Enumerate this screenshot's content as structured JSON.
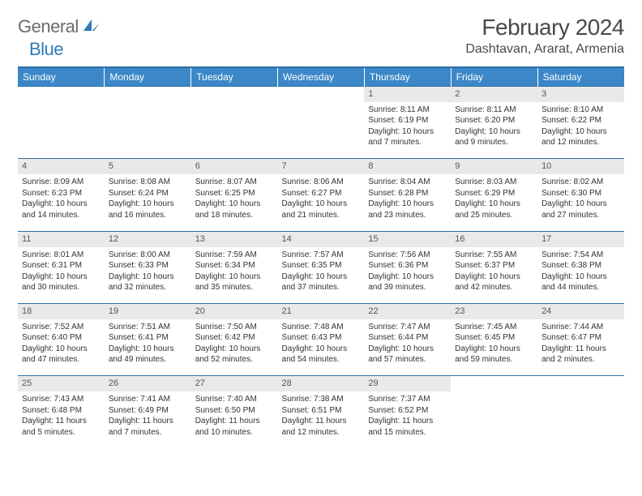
{
  "brand": {
    "part1": "General",
    "part2": "Blue"
  },
  "title": "February 2024",
  "location": "Dashtavan, Ararat, Armenia",
  "colors": {
    "header_bg": "#3b87c8",
    "header_border": "#2f6fa3",
    "daynum_bg": "#e9e9e9",
    "text": "#333333",
    "brand_gray": "#6b6b6b",
    "brand_blue": "#2f78b7"
  },
  "weekdays": [
    "Sunday",
    "Monday",
    "Tuesday",
    "Wednesday",
    "Thursday",
    "Friday",
    "Saturday"
  ],
  "weeks": [
    {
      "days": [
        null,
        null,
        null,
        null,
        {
          "n": "1",
          "sunrise": "8:11 AM",
          "sunset": "6:19 PM",
          "daylight": "10 hours and 7 minutes."
        },
        {
          "n": "2",
          "sunrise": "8:11 AM",
          "sunset": "6:20 PM",
          "daylight": "10 hours and 9 minutes."
        },
        {
          "n": "3",
          "sunrise": "8:10 AM",
          "sunset": "6:22 PM",
          "daylight": "10 hours and 12 minutes."
        }
      ]
    },
    {
      "days": [
        {
          "n": "4",
          "sunrise": "8:09 AM",
          "sunset": "6:23 PM",
          "daylight": "10 hours and 14 minutes."
        },
        {
          "n": "5",
          "sunrise": "8:08 AM",
          "sunset": "6:24 PM",
          "daylight": "10 hours and 16 minutes."
        },
        {
          "n": "6",
          "sunrise": "8:07 AM",
          "sunset": "6:25 PM",
          "daylight": "10 hours and 18 minutes."
        },
        {
          "n": "7",
          "sunrise": "8:06 AM",
          "sunset": "6:27 PM",
          "daylight": "10 hours and 21 minutes."
        },
        {
          "n": "8",
          "sunrise": "8:04 AM",
          "sunset": "6:28 PM",
          "daylight": "10 hours and 23 minutes."
        },
        {
          "n": "9",
          "sunrise": "8:03 AM",
          "sunset": "6:29 PM",
          "daylight": "10 hours and 25 minutes."
        },
        {
          "n": "10",
          "sunrise": "8:02 AM",
          "sunset": "6:30 PM",
          "daylight": "10 hours and 27 minutes."
        }
      ]
    },
    {
      "days": [
        {
          "n": "11",
          "sunrise": "8:01 AM",
          "sunset": "6:31 PM",
          "daylight": "10 hours and 30 minutes."
        },
        {
          "n": "12",
          "sunrise": "8:00 AM",
          "sunset": "6:33 PM",
          "daylight": "10 hours and 32 minutes."
        },
        {
          "n": "13",
          "sunrise": "7:59 AM",
          "sunset": "6:34 PM",
          "daylight": "10 hours and 35 minutes."
        },
        {
          "n": "14",
          "sunrise": "7:57 AM",
          "sunset": "6:35 PM",
          "daylight": "10 hours and 37 minutes."
        },
        {
          "n": "15",
          "sunrise": "7:56 AM",
          "sunset": "6:36 PM",
          "daylight": "10 hours and 39 minutes."
        },
        {
          "n": "16",
          "sunrise": "7:55 AM",
          "sunset": "6:37 PM",
          "daylight": "10 hours and 42 minutes."
        },
        {
          "n": "17",
          "sunrise": "7:54 AM",
          "sunset": "6:38 PM",
          "daylight": "10 hours and 44 minutes."
        }
      ]
    },
    {
      "days": [
        {
          "n": "18",
          "sunrise": "7:52 AM",
          "sunset": "6:40 PM",
          "daylight": "10 hours and 47 minutes."
        },
        {
          "n": "19",
          "sunrise": "7:51 AM",
          "sunset": "6:41 PM",
          "daylight": "10 hours and 49 minutes."
        },
        {
          "n": "20",
          "sunrise": "7:50 AM",
          "sunset": "6:42 PM",
          "daylight": "10 hours and 52 minutes."
        },
        {
          "n": "21",
          "sunrise": "7:48 AM",
          "sunset": "6:43 PM",
          "daylight": "10 hours and 54 minutes."
        },
        {
          "n": "22",
          "sunrise": "7:47 AM",
          "sunset": "6:44 PM",
          "daylight": "10 hours and 57 minutes."
        },
        {
          "n": "23",
          "sunrise": "7:45 AM",
          "sunset": "6:45 PM",
          "daylight": "10 hours and 59 minutes."
        },
        {
          "n": "24",
          "sunrise": "7:44 AM",
          "sunset": "6:47 PM",
          "daylight": "11 hours and 2 minutes."
        }
      ]
    },
    {
      "days": [
        {
          "n": "25",
          "sunrise": "7:43 AM",
          "sunset": "6:48 PM",
          "daylight": "11 hours and 5 minutes."
        },
        {
          "n": "26",
          "sunrise": "7:41 AM",
          "sunset": "6:49 PM",
          "daylight": "11 hours and 7 minutes."
        },
        {
          "n": "27",
          "sunrise": "7:40 AM",
          "sunset": "6:50 PM",
          "daylight": "11 hours and 10 minutes."
        },
        {
          "n": "28",
          "sunrise": "7:38 AM",
          "sunset": "6:51 PM",
          "daylight": "11 hours and 12 minutes."
        },
        {
          "n": "29",
          "sunrise": "7:37 AM",
          "sunset": "6:52 PM",
          "daylight": "11 hours and 15 minutes."
        },
        null,
        null
      ]
    }
  ]
}
